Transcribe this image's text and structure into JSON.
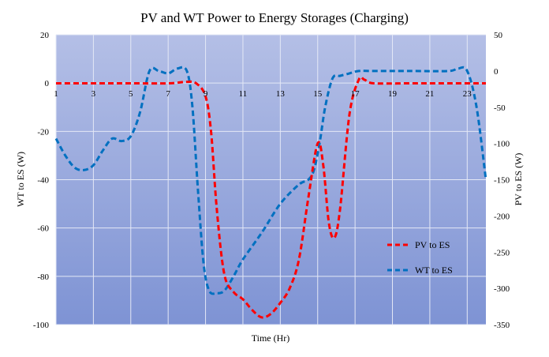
{
  "chart_data": {
    "type": "line",
    "title": "PV and WT Power to Energy Storages (Charging)",
    "xlabel": "Time (Hr)",
    "ylabel_left": "WT to ES (W)",
    "ylabel_right": "PV to ES (W)",
    "xlim": [
      1,
      24
    ],
    "ylim_left": [
      -100,
      20
    ],
    "ylim_right": [
      -350,
      50
    ],
    "x_ticks": [
      "1",
      "3",
      "5",
      "7",
      "9",
      "11",
      "13",
      "15",
      "17",
      "19",
      "21",
      "23"
    ],
    "y_left_ticks": [
      "20",
      "0",
      "-20",
      "-40",
      "-60",
      "-80",
      "-100"
    ],
    "y_right_ticks": [
      "50",
      "0",
      "-50",
      "-100",
      "-150",
      "-200",
      "-250",
      "-300",
      "-350"
    ],
    "grid": true,
    "legend_position": "bottom-right",
    "background_gradient": [
      "#b4bfe6",
      "#7e93d4"
    ],
    "series": [
      {
        "name": "PV to ES",
        "axis": "right",
        "color": "#ff0000",
        "style": "dashed",
        "points": [
          [
            1,
            -17
          ],
          [
            3,
            -17
          ],
          [
            5,
            -17
          ],
          [
            7,
            -17
          ],
          [
            8,
            -15
          ],
          [
            8.5,
            -17
          ],
          [
            9,
            -35
          ],
          [
            9.3,
            -85
          ],
          [
            9.6,
            -190
          ],
          [
            10,
            -280
          ],
          [
            10.5,
            -305
          ],
          [
            11,
            -315
          ],
          [
            11.5,
            -330
          ],
          [
            12,
            -340
          ],
          [
            12.5,
            -335
          ],
          [
            13,
            -320
          ],
          [
            13.5,
            -300
          ],
          [
            14,
            -260
          ],
          [
            14.5,
            -175
          ],
          [
            15,
            -100
          ],
          [
            15.3,
            -130
          ],
          [
            15.6,
            -210
          ],
          [
            15.9,
            -230
          ],
          [
            16.2,
            -190
          ],
          [
            16.7,
            -60
          ],
          [
            17.2,
            -12
          ],
          [
            17.5,
            -12
          ],
          [
            18,
            -17
          ],
          [
            20,
            -17
          ],
          [
            22,
            -17
          ],
          [
            24,
            -17
          ]
        ]
      },
      {
        "name": "WT to ES",
        "axis": "left",
        "color": "#0070c0",
        "style": "dashed",
        "points": [
          [
            1,
            -23
          ],
          [
            1.5,
            -30
          ],
          [
            2,
            -35
          ],
          [
            2.5,
            -36
          ],
          [
            3,
            -34
          ],
          [
            3.5,
            -28
          ],
          [
            4,
            -23
          ],
          [
            4.5,
            -24
          ],
          [
            5,
            -22
          ],
          [
            5.5,
            -12
          ],
          [
            6,
            5
          ],
          [
            6.5,
            5
          ],
          [
            7,
            4
          ],
          [
            7.5,
            6
          ],
          [
            8,
            5
          ],
          [
            8.3,
            -10
          ],
          [
            8.6,
            -45
          ],
          [
            8.9,
            -75
          ],
          [
            9.2,
            -86
          ],
          [
            9.6,
            -87
          ],
          [
            10,
            -86
          ],
          [
            10.5,
            -80
          ],
          [
            11,
            -73
          ],
          [
            12,
            -62
          ],
          [
            13,
            -50
          ],
          [
            14,
            -42
          ],
          [
            14.5,
            -40
          ],
          [
            14.8,
            -36
          ],
          [
            15.1,
            -25
          ],
          [
            15.4,
            -10
          ],
          [
            15.8,
            2
          ],
          [
            16.2,
            3
          ],
          [
            16.7,
            4
          ],
          [
            17.2,
            5
          ],
          [
            18,
            5
          ],
          [
            20,
            5
          ],
          [
            22,
            5
          ],
          [
            22.5,
            6
          ],
          [
            23,
            5
          ],
          [
            23.5,
            -10
          ],
          [
            24,
            -40
          ]
        ]
      }
    ]
  }
}
